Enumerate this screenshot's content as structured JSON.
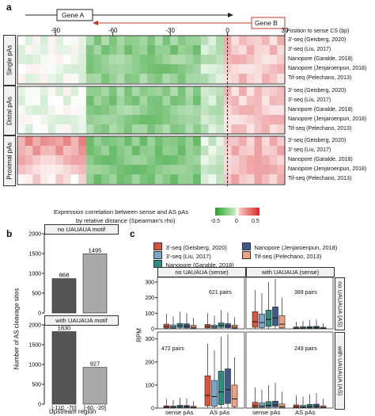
{
  "panel_a": {
    "letter": "a",
    "gene_a": "Gene A",
    "gene_b": "Gene B",
    "x_axis_title": "Position to sense CS (bp)",
    "x_ticks": [
      "-90",
      "-60",
      "-30",
      "0",
      "30"
    ],
    "groups": [
      {
        "label": "Single pAs",
        "rows": [
          "3'-seq (Geisberg, 2020)",
          "3'-seq (Liu, 2017)",
          "Nanopore (Garalde, 2018)",
          "Nanopore (Jenjaroenpun, 2018)",
          "Tif-seq (Pelechano, 2013)"
        ]
      },
      {
        "label": "Distal pAs",
        "rows": [
          "3'-seq (Geisberg, 2020)",
          "3'-seq (Liu, 2017)",
          "Nanopore (Garalde, 2018)",
          "Nanopore (Jenjaroenpun, 2018)",
          "Tif-seq (Pelechano, 2013)"
        ]
      },
      {
        "label": "Proximal pAs",
        "rows": [
          "3'-seq (Geisberg, 2020)",
          "3'-seq (Liu, 2017)",
          "Nanopore (Garalde, 2018)",
          "Nanopore (Jenjaroenpun, 2018)",
          "Tif-seq (Pelechano, 2013)"
        ]
      }
    ],
    "legend_title_1": "Expression correlation between sense and AS pAs",
    "legend_title_2": "by relative distance (Spearman's rho)",
    "legend_ticks": [
      "-0.5",
      "0",
      "0.5"
    ]
  },
  "panel_b": {
    "letter": "b",
    "y_axis_title": "Number of AS cleavage sites",
    "x_axis_title": "Upstream region",
    "categories": [
      "[-110, -70]",
      "[-60, -20]"
    ],
    "top": {
      "label": "no UAUAUA motif",
      "values": [
        868,
        1495
      ],
      "value_labels": [
        "868",
        "1495"
      ],
      "y_ticks": [
        "0",
        "500",
        "1000",
        "1500",
        "2000"
      ],
      "ylim": [
        0,
        2000
      ]
    },
    "bottom": {
      "label": "with UAUAUA motif",
      "values": [
        1830,
        927
      ],
      "value_labels": [
        "1830",
        "927"
      ],
      "y_ticks": [
        "0",
        "500",
        "1000",
        "1500",
        "2000"
      ],
      "ylim": [
        0,
        2000
      ]
    },
    "colors": [
      "#555555",
      "#a9a9a9"
    ]
  },
  "panel_c": {
    "letter": "c",
    "legend": [
      {
        "name": "3'-seq (Geisberg, 2020)",
        "color": "#d9553b"
      },
      {
        "name": "Nanopore (Jenjaroenpun, 2018)",
        "color": "#3e5a8a"
      },
      {
        "name": "3'-seq (Liu, 2017)",
        "color": "#7aa6c9"
      },
      {
        "name": "Tif-seq (Pelechano, 2013)",
        "color": "#f0a07c"
      },
      {
        "name": "Nanopore (Garalde, 2018)",
        "color": "#2e8c80"
      }
    ],
    "y_axis_title": "RPM",
    "y_ticks": [
      "0",
      "100",
      "200",
      "300"
    ],
    "col_headers": [
      "no UAUAUA (sense)",
      "with UAUAUA (sense)"
    ],
    "row_headers": [
      "no UAUAUA (AS)",
      "with UAUAUA (AS)"
    ],
    "pair_labels": [
      "621 pairs",
      "389 pairs",
      "472 pairs",
      "249 pairs"
    ],
    "x_labels": [
      "sense pAs",
      "AS pAs",
      "sense pAs",
      "AS pAs"
    ]
  }
}
